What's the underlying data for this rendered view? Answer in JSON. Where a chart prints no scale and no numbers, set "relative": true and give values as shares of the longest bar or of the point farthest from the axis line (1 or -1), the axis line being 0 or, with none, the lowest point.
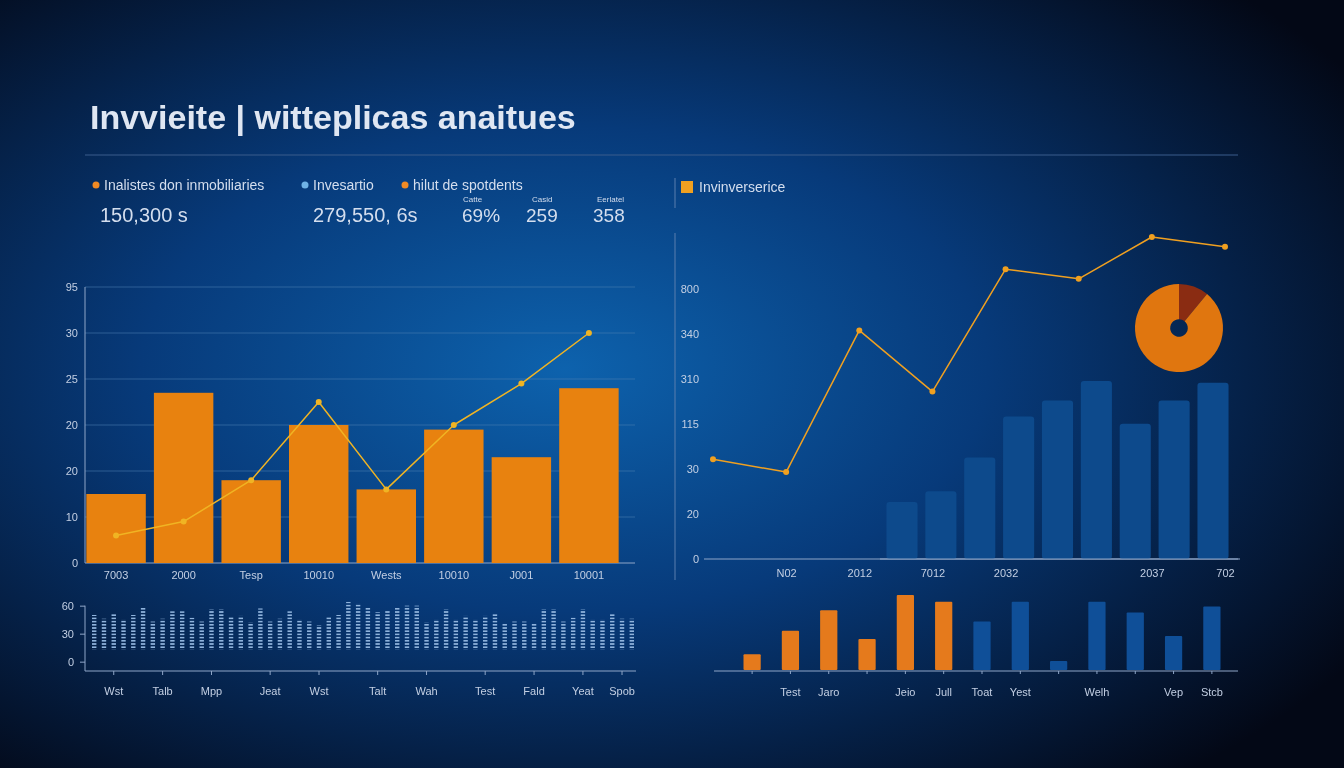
{
  "chart_data": [
    {
      "type": "other",
      "title": "Invvieite | witteplicas anaitues",
      "annotations": [
        "Inalistes don inmobiliaries",
        "150,300 s",
        "Invesartio",
        "279,550, 6s",
        "hilut de spotdents",
        "Catte",
        "69%",
        "Casid",
        "259",
        "Eerlatel",
        "358"
      ]
    },
    {
      "type": "bar",
      "relative": true,
      "categories": [
        "7003",
        "2000",
        "Tesp",
        "10010",
        "Wests",
        "10010",
        "J001",
        "10001"
      ],
      "series": [
        {
          "type": "bar",
          "color": "#e8820f",
          "values": [
            0.3,
            0.74,
            0.36,
            0.6,
            0.32,
            0.58,
            0.46,
            0.76
          ]
        },
        {
          "type": "line",
          "color": "#f0b423",
          "values": [
            0.12,
            0.18,
            0.36,
            0.7,
            0.32,
            0.6,
            0.78,
            1
          ]
        }
      ],
      "annotations": [
        "0",
        "10",
        "20",
        "20",
        "25",
        "30",
        "95"
      ],
      "ref_lines": [
        {
          "axis": "y",
          "value": 0.2
        },
        {
          "axis": "y",
          "value": 0.4
        },
        {
          "axis": "y",
          "value": 0.6
        },
        {
          "axis": "y",
          "value": 0.8
        },
        {
          "axis": "y",
          "value": 1
        },
        {
          "axis": "y",
          "value": 1.2
        }
      ],
      "marker": "circle"
    },
    {
      "type": "bar",
      "categories": [
        null,
        null,
        "Wst",
        null,
        null,
        null,
        null,
        "Talb",
        null,
        null,
        null,
        null,
        "Mpp",
        null,
        null,
        null,
        null,
        null,
        "Jeat",
        null,
        null,
        null,
        null,
        "Wst",
        null,
        null,
        null,
        null,
        null,
        "Talt",
        null,
        null,
        null,
        null,
        "Wah",
        null,
        null,
        null,
        null,
        null,
        "Test",
        null,
        null,
        null,
        null,
        "Fald",
        null,
        null,
        null,
        null,
        "Yeat",
        null,
        null,
        null,
        "Spob",
        null
      ],
      "values": [
        37,
        33,
        39,
        32,
        37,
        45,
        30,
        33,
        41,
        41,
        34,
        30,
        43,
        43,
        35,
        36,
        29,
        44,
        30,
        33,
        41,
        32,
        30,
        26,
        35,
        37,
        51,
        49,
        45,
        40,
        42,
        45,
        47,
        47,
        29,
        32,
        43,
        32,
        36,
        32,
        36,
        39,
        28,
        30,
        30,
        28,
        43,
        43,
        30,
        34,
        43,
        32,
        32,
        39,
        33,
        33
      ],
      "base": [
        13,
        13,
        13,
        13,
        13,
        13,
        13,
        13,
        13,
        13,
        13,
        13,
        13,
        13,
        13,
        13,
        13,
        13,
        13,
        13,
        13,
        13,
        13,
        13,
        13,
        13,
        13,
        13,
        13,
        13,
        13,
        13,
        13,
        13,
        13,
        13,
        13,
        13,
        13,
        13,
        13,
        13,
        13,
        13,
        13,
        13,
        13,
        13,
        13,
        13,
        13,
        13,
        13,
        13,
        13,
        13
      ],
      "color": "#8fb3dc",
      "ylim": [
        -10,
        65
      ],
      "yticks": [
        0,
        30,
        60
      ]
    },
    {
      "type": "line",
      "relative": true,
      "categories": [
        null,
        "N02",
        "2012",
        "7012",
        "2032",
        null,
        "2037",
        "702"
      ],
      "series": [
        {
          "type": "line",
          "name": "Invinverserice",
          "color": "#f0a020",
          "values": [
            0.31,
            0.27,
            0.71,
            0.52,
            0.9,
            0.87,
            1,
            0.97
          ]
        }
      ],
      "annotations": [
        "0",
        "20",
        "30",
        "115",
        "310",
        "340",
        "800"
      ],
      "legend": "top left",
      "marker": "circle"
    },
    {
      "type": "bar",
      "relative": true,
      "categories": [
        null,
        null,
        null,
        null,
        null,
        null,
        null,
        null,
        null
      ],
      "color": "#0d4a8c",
      "values": [
        0.32,
        0.38,
        0.57,
        0.8,
        0.89,
        1,
        0.76,
        0.89,
        0.99
      ]
    },
    {
      "type": "donut",
      "categories": [
        null,
        null
      ],
      "values": [
        11,
        89
      ],
      "colors": [
        "#8a2c12",
        "#e0760f"
      ]
    },
    {
      "type": "bar",
      "relative": true,
      "categories": [
        null,
        "Test",
        "Jaro",
        null,
        "Jeio",
        "Jull",
        "Toat",
        "Yest",
        null,
        "Welh",
        null,
        "Vep",
        "Stcb"
      ],
      "values": [
        0.22,
        0.53,
        0.8,
        0.42,
        1,
        0.91,
        0.65,
        0.91,
        0.13,
        0.91,
        0.77,
        0.46,
        0.85
      ],
      "colors": [
        "#e57a1c",
        "#e57a1c",
        "#e57a1c",
        "#e57a1c",
        "#e57a1c",
        "#e57a1c",
        "#0f4f98",
        "#0f4f98",
        "#0f4f98",
        "#0f4f98",
        "#0f4f98",
        "#0f4f98",
        "#0f4f98"
      ]
    }
  ]
}
